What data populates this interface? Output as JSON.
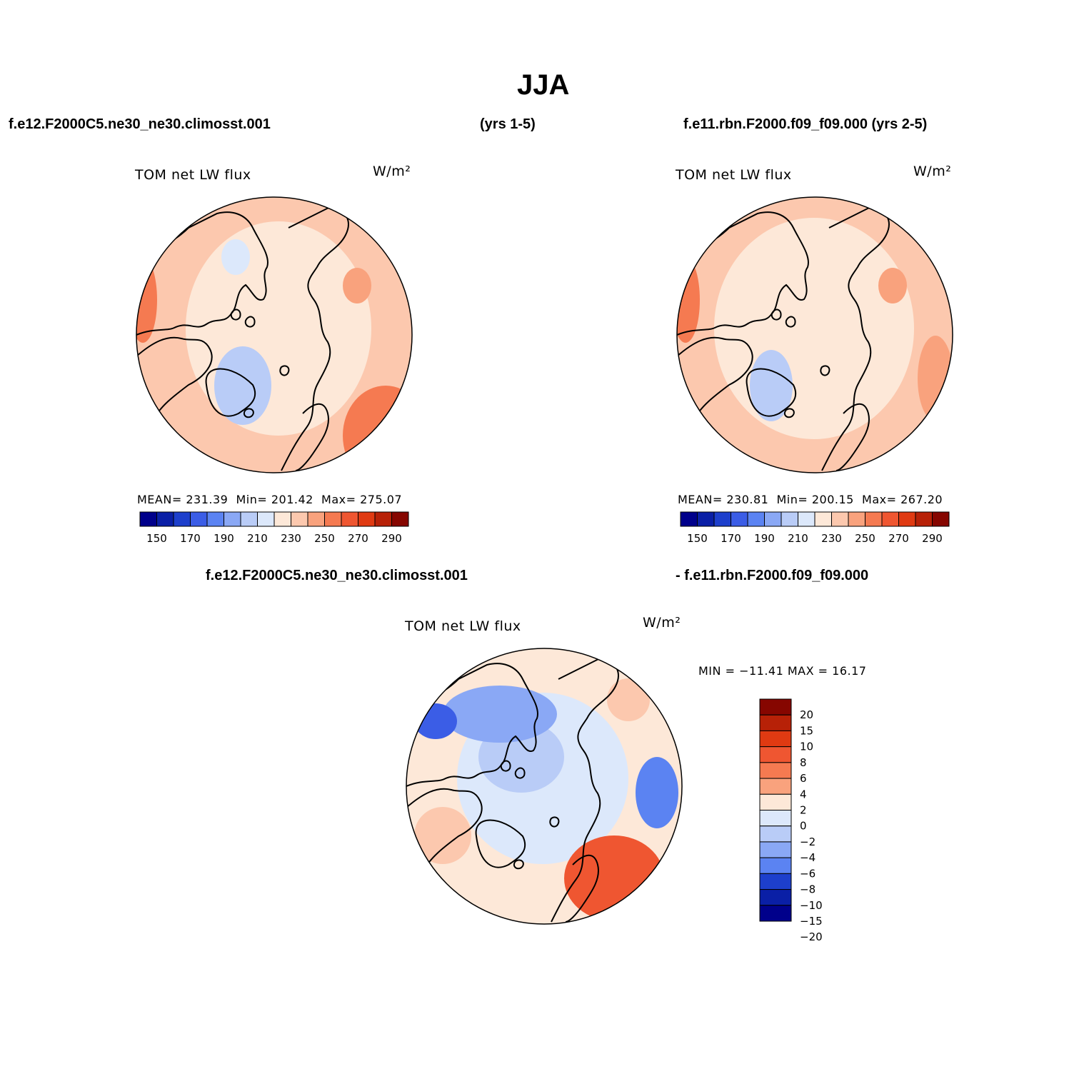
{
  "figure": {
    "title": "JJA",
    "header_left": "f.e12.F2000C5.ne30_ne30.climosst.001",
    "header_mid": "(yrs 1-5)",
    "header_right": "f.e11.rbn.F2000.f09_f09.000 (yrs 2-5)",
    "diff_header_left": "f.e12.F2000C5.ne30_ne30.climosst.001",
    "diff_header_right": "- f.e11.rbn.F2000.f09_f09.000"
  },
  "panels": [
    {
      "subtitle": "TOM net LW flux",
      "units": "W/m²",
      "mean_label": "MEAN=",
      "mean_value": "231.39",
      "min_label": "Min=",
      "min_value": "201.42",
      "max_label": "Max=",
      "max_value": "275.07"
    },
    {
      "subtitle": "TOM net LW flux",
      "units": "W/m²",
      "mean_label": "MEAN=",
      "mean_value": "230.81",
      "min_label": "Min=",
      "min_value": "200.15",
      "max_label": "Max=",
      "max_value": "267.20"
    },
    {
      "subtitle": "TOM net LW flux",
      "units": "W/m²",
      "minmax": "MIN = −11.41 MAX =   16.17"
    }
  ],
  "colorbar_abs": {
    "colors": [
      "#00008b",
      "#0a1fa6",
      "#1d3fcc",
      "#3b5de6",
      "#5b83f2",
      "#8aa8f5",
      "#b9ccf7",
      "#dce8fb",
      "#fde8d8",
      "#fcc8ae",
      "#f9a27d",
      "#f57a51",
      "#ef5631",
      "#e03a12",
      "#b72107",
      "#860600"
    ],
    "tick_labels": [
      "150",
      "170",
      "190",
      "210",
      "230",
      "250",
      "270",
      "290"
    ]
  },
  "colorbar_diff": {
    "colors": [
      "#860600",
      "#b72107",
      "#e03a12",
      "#ef5631",
      "#f57a51",
      "#f9a27d",
      "#fde8d8",
      "#dce8fb",
      "#b9ccf7",
      "#8aa8f5",
      "#5b83f2",
      "#1d3fcc",
      "#0a1fa6",
      "#00008b"
    ],
    "tick_labels": [
      "20",
      "15",
      "10",
      "8",
      "6",
      "4",
      "2",
      "0",
      "−2",
      "−4",
      "−6",
      "−8",
      "−10",
      "−15",
      "−20"
    ]
  }
}
